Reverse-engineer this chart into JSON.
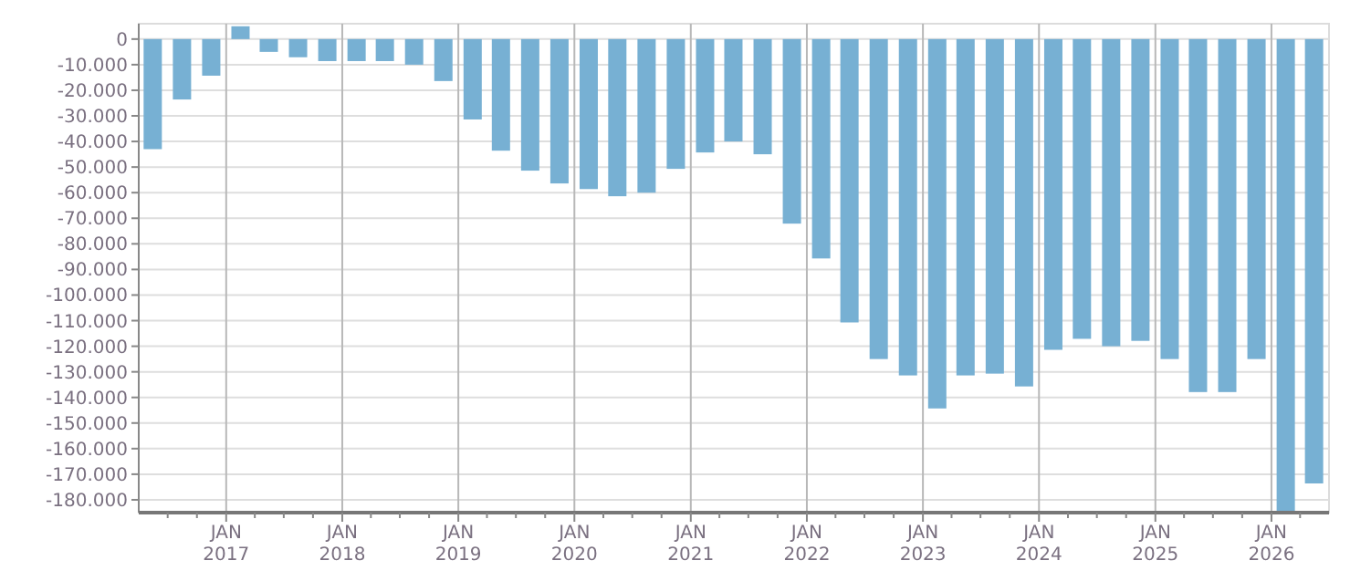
{
  "chart_data": {
    "type": "bar",
    "x": [
      "2016-05-15",
      "2016-08-15",
      "2016-11-15",
      "2017-02-15",
      "2017-05-15",
      "2017-08-15",
      "2017-11-15",
      "2018-02-15",
      "2018-05-15",
      "2018-08-15",
      "2018-11-15",
      "2019-02-15",
      "2019-05-15",
      "2019-08-15",
      "2019-11-15",
      "2020-02-15",
      "2020-05-15",
      "2020-08-15",
      "2020-11-15",
      "2021-02-15",
      "2021-05-15",
      "2021-08-15",
      "2021-11-15",
      "2022-02-15",
      "2022-05-15",
      "2022-08-15",
      "2022-11-15",
      "2023-02-15",
      "2023-05-15",
      "2023-08-15",
      "2023-11-15",
      "2024-02-15",
      "2024-05-15",
      "2024-08-15",
      "2024-11-15",
      "2025-02-15",
      "2025-05-15",
      "2025-08-15",
      "2025-11-15",
      "2026-02-15",
      "2026-05-15"
    ],
    "values": [
      -43000,
      -23600,
      -14300,
      5000,
      -5000,
      -7100,
      -8600,
      -8600,
      -8600,
      -10000,
      -16400,
      -31400,
      -43600,
      -51400,
      -56400,
      -58600,
      -61400,
      -60000,
      -50700,
      -44300,
      -40000,
      -45000,
      -72100,
      -85700,
      -110700,
      -125000,
      -131400,
      -144300,
      -131400,
      -130700,
      -135700,
      -121400,
      -117100,
      -120000,
      -117900,
      -125000,
      -137900,
      -137900,
      -125000,
      -185000,
      -173600
    ],
    "color": "#77b0d3",
    "xlim": [
      "2016-04-01",
      "2026-07-01"
    ],
    "xticks": [
      {
        "value": "2016-07-01",
        "label": null
      },
      {
        "value": "2016-10-01",
        "label": null
      },
      {
        "value": "2017-01-01",
        "label": "JAN\n2017"
      },
      {
        "value": "2017-04-01",
        "label": null
      },
      {
        "value": "2017-07-01",
        "label": null
      },
      {
        "value": "2017-10-01",
        "label": null
      },
      {
        "value": "2018-01-01",
        "label": "JAN\n2018"
      },
      {
        "value": "2018-04-01",
        "label": null
      },
      {
        "value": "2018-07-01",
        "label": null
      },
      {
        "value": "2018-10-01",
        "label": null
      },
      {
        "value": "2019-01-01",
        "label": "JAN\n2019"
      },
      {
        "value": "2019-04-01",
        "label": null
      },
      {
        "value": "2019-07-01",
        "label": null
      },
      {
        "value": "2019-10-01",
        "label": null
      },
      {
        "value": "2020-01-01",
        "label": "JAN\n2020"
      },
      {
        "value": "2020-04-01",
        "label": null
      },
      {
        "value": "2020-07-01",
        "label": null
      },
      {
        "value": "2020-10-01",
        "label": null
      },
      {
        "value": "2021-01-01",
        "label": "JAN\n2021"
      },
      {
        "value": "2021-04-01",
        "label": null
      },
      {
        "value": "2021-07-01",
        "label": null
      },
      {
        "value": "2021-10-01",
        "label": null
      },
      {
        "value": "2022-01-01",
        "label": "JAN\n2022"
      },
      {
        "value": "2022-04-01",
        "label": null
      },
      {
        "value": "2022-07-01",
        "label": null
      },
      {
        "value": "2022-10-01",
        "label": null
      },
      {
        "value": "2023-01-01",
        "label": "JAN\n2023"
      },
      {
        "value": "2023-04-01",
        "label": null
      },
      {
        "value": "2023-07-01",
        "label": null
      },
      {
        "value": "2023-10-01",
        "label": null
      },
      {
        "value": "2024-01-01",
        "label": "JAN\n2024"
      },
      {
        "value": "2024-04-01",
        "label": null
      },
      {
        "value": "2024-07-01",
        "label": null
      },
      {
        "value": "2024-10-01",
        "label": null
      },
      {
        "value": "2025-01-01",
        "label": "JAN\n2025"
      },
      {
        "value": "2025-04-01",
        "label": null
      },
      {
        "value": "2025-07-01",
        "label": null
      },
      {
        "value": "2025-10-01",
        "label": null
      },
      {
        "value": "2026-01-01",
        "label": "JAN\n2026"
      },
      {
        "value": "2026-04-01",
        "label": null
      }
    ],
    "ylim": [
      -185000,
      6000
    ],
    "yticks": [
      0,
      {
        "value": -10000,
        "label": "-10.000"
      },
      {
        "value": -20000,
        "label": "-20.000"
      },
      {
        "value": -30000,
        "label": "-30.000"
      },
      {
        "value": -40000,
        "label": "-40.000"
      },
      {
        "value": -50000,
        "label": "-50.000"
      },
      {
        "value": -60000,
        "label": "-60.000"
      },
      {
        "value": -70000,
        "label": "-70.000"
      },
      {
        "value": -80000,
        "label": "-80.000"
      },
      {
        "value": -90000,
        "label": "-90.000"
      },
      {
        "value": -100000,
        "label": "-100.000"
      },
      {
        "value": -110000,
        "label": "-110.000"
      },
      {
        "value": -120000,
        "label": "-120.000"
      },
      {
        "value": -130000,
        "label": "-130.000"
      },
      {
        "value": -140000,
        "label": "-140.000"
      },
      {
        "value": -150000,
        "label": "-150.000"
      },
      {
        "value": -160000,
        "label": "-160.000"
      },
      {
        "value": -170000,
        "label": "-170.000"
      },
      {
        "value": -180000,
        "label": "-180.000"
      }
    ],
    "grid": true
  }
}
